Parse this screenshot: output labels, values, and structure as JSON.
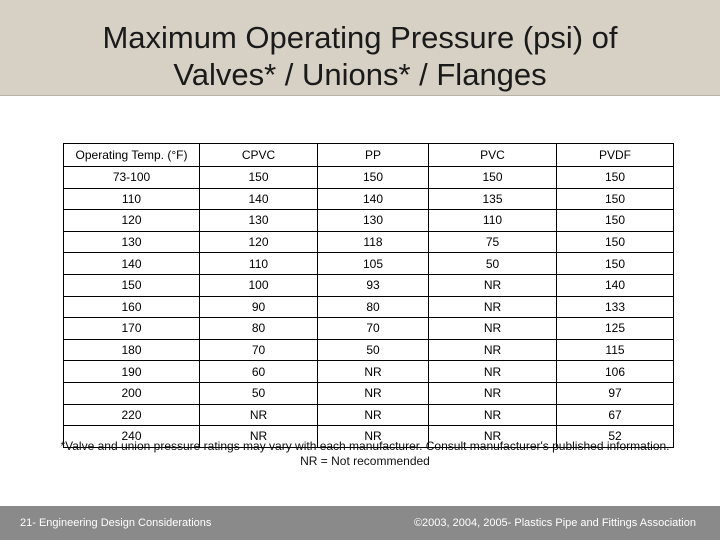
{
  "header": {
    "title_lines": [
      "Maximum Operating Pressure (psi) of",
      "Valves* / Unions* / Flanges"
    ]
  },
  "table": {
    "columns": [
      "Operating Temp. (°F)",
      "CPVC",
      "PP",
      "PVC",
      "PVDF"
    ],
    "rows": [
      [
        "73-100",
        "150",
        "150",
        "150",
        "150"
      ],
      [
        "110",
        "140",
        "140",
        "135",
        "150"
      ],
      [
        "120",
        "130",
        "130",
        "110",
        "150"
      ],
      [
        "130",
        "120",
        "118",
        "75",
        "150"
      ],
      [
        "140",
        "110",
        "105",
        "50",
        "150"
      ],
      [
        "150",
        "100",
        "93",
        "NR",
        "140"
      ],
      [
        "160",
        "90",
        "80",
        "NR",
        "133"
      ],
      [
        "170",
        "80",
        "70",
        "NR",
        "125"
      ],
      [
        "180",
        "70",
        "50",
        "NR",
        "115"
      ],
      [
        "190",
        "60",
        "NR",
        "NR",
        "106"
      ],
      [
        "200",
        "50",
        "NR",
        "NR",
        "97"
      ],
      [
        "220",
        "NR",
        "NR",
        "NR",
        "67"
      ],
      [
        "240",
        "NR",
        "NR",
        "NR",
        "52"
      ]
    ]
  },
  "notes": [
    "*Valve and union pressure ratings may vary with each manufacturer. Consult manufacturer's published information.",
    "NR = Not recommended"
  ],
  "footer": {
    "left": "21- Engineering Design Considerations",
    "right": "©2003, 2004, 2005- Plastics Pipe and Fittings Association"
  }
}
